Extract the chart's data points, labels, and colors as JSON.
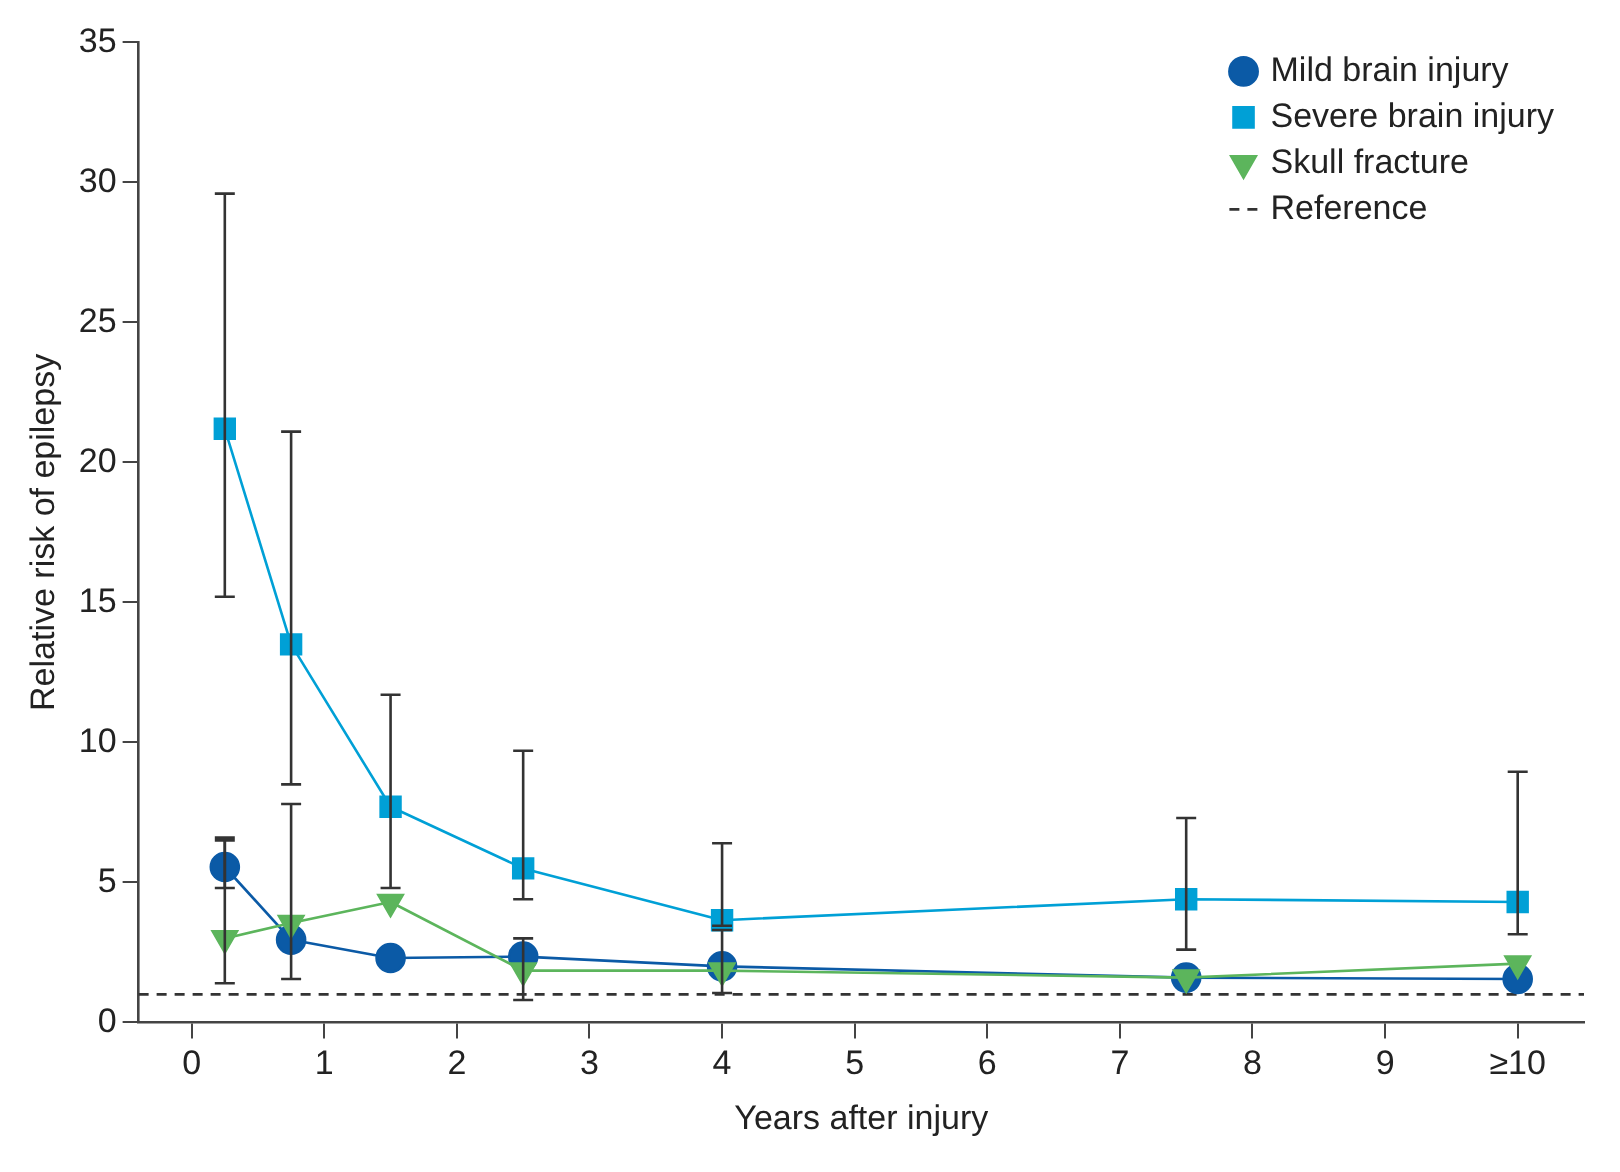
{
  "chart_data": {
    "type": "line",
    "xlabel": "Years after injury",
    "ylabel": "Relative risk of epilepsy",
    "x": [
      0.25,
      0.75,
      1.5,
      2.5,
      4,
      7.5,
      10
    ],
    "xlim": [
      -0.4,
      10.5
    ],
    "xticks": [
      0,
      1,
      2,
      3,
      4,
      5,
      6,
      7,
      8,
      9,
      {
        "value": 10,
        "label": "≥10"
      }
    ],
    "ylim": [
      0,
      35
    ],
    "yticks": [
      0,
      5,
      10,
      15,
      20,
      25,
      30,
      35
    ],
    "grid": false,
    "legend": "top right",
    "series": [
      {
        "name": "Mild brain injury",
        "color": "#0b5aa6",
        "marker": "circle",
        "values": [
          5.55,
          2.95,
          2.3,
          2.35,
          2.0,
          1.6,
          1.55
        ],
        "errors": [
          [
            4.8,
            6.6
          ],
          null,
          null,
          null,
          null,
          null,
          null
        ]
      },
      {
        "name": "Severe brain injury",
        "color": "#00a0d6",
        "marker": "square",
        "values": [
          21.2,
          13.5,
          7.7,
          5.5,
          3.65,
          4.4,
          4.3
        ],
        "errors": [
          [
            15.2,
            29.6
          ],
          [
            8.5,
            21.1
          ],
          [
            4.8,
            11.7
          ],
          [
            4.4,
            9.7
          ],
          [
            3.45,
            6.4
          ],
          [
            2.6,
            7.3
          ],
          [
            3.15,
            8.95
          ]
        ]
      },
      {
        "name": "Skull fracture",
        "color": "#5cb55c",
        "marker": "triangle",
        "values": [
          3.0,
          3.55,
          4.3,
          1.85,
          1.85,
          1.6,
          2.1
        ],
        "errors": [
          [
            1.4,
            6.5
          ],
          [
            1.55,
            7.8
          ],
          null,
          [
            0.8,
            3.0
          ],
          [
            1.05,
            3.3
          ],
          null,
          null
        ]
      }
    ],
    "ref_lines": [
      {
        "axis": "y",
        "value": 1,
        "label": "Reference",
        "color": "#333333",
        "line_style": "dashed"
      }
    ]
  }
}
